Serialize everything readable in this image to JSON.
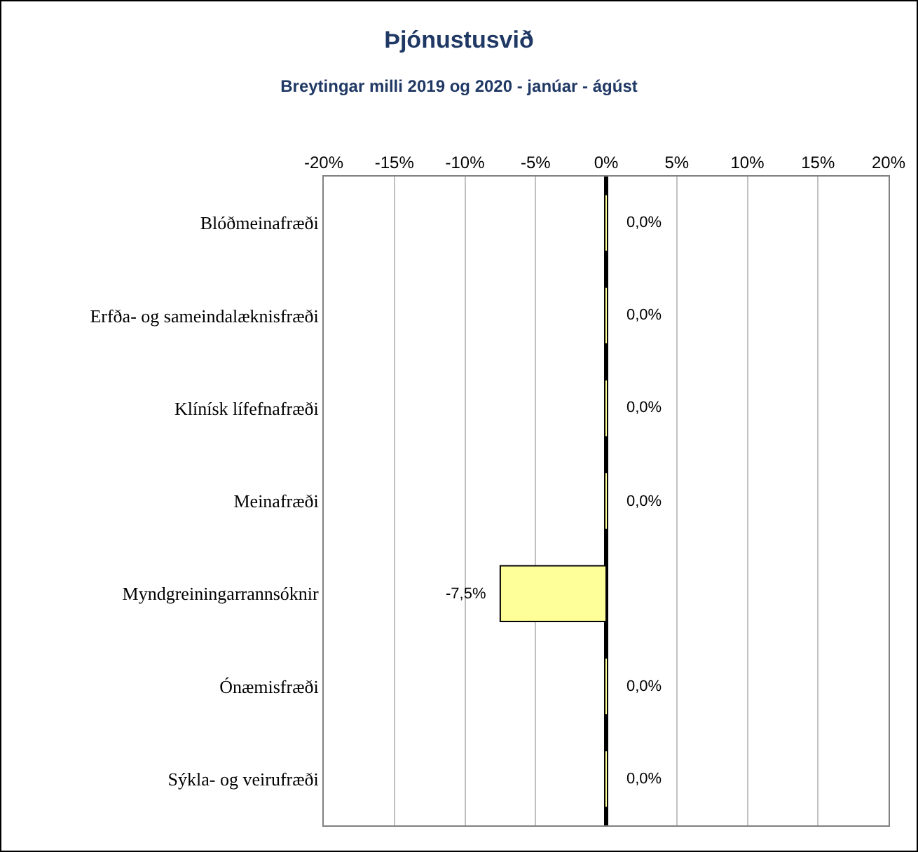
{
  "chart_data": {
    "type": "bar",
    "orientation": "horizontal",
    "title": "Þjónustusvið",
    "subtitle": "Breytingar milli 2019 og 2020 - janúar - ágúst",
    "categories": [
      "Blóðmeinafræði",
      "Erfða- og sameindalæknisfræði",
      "Klínísk lífefnafræði",
      "Meinafræði",
      "Myndgreiningarrannsóknir",
      "Ónæmisfræði",
      "Sýkla- og veirufræði"
    ],
    "values": [
      0,
      0,
      0,
      0,
      -7.5,
      0,
      0
    ],
    "value_labels": [
      "0,0%",
      "0,0%",
      "0,0%",
      "0,0%",
      "-7,5%",
      "0,0%",
      "0,0%"
    ],
    "color": "#ffff99",
    "xlim": [
      -20,
      20
    ],
    "xticks": [
      {
        "value": -20,
        "label": "-20%"
      },
      {
        "value": -15,
        "label": "-15%"
      },
      {
        "value": -10,
        "label": "-10%"
      },
      {
        "value": -5,
        "label": "-5%"
      },
      {
        "value": 0,
        "label": "0%"
      },
      {
        "value": 5,
        "label": "5%"
      },
      {
        "value": 10,
        "label": "10%"
      },
      {
        "value": 15,
        "label": "15%"
      },
      {
        "value": 20,
        "label": "20%"
      }
    ],
    "grid": "x"
  }
}
